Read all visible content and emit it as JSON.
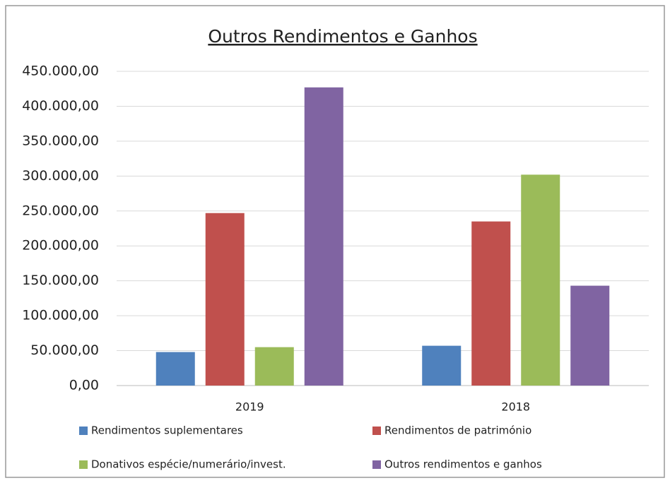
{
  "chart_data": {
    "type": "bar",
    "title": "Outros Rendimentos e Ganhos",
    "categories": [
      "2019",
      "2018"
    ],
    "series": [
      {
        "name": "Rendimentos suplementares",
        "color": "#4f81bd",
        "values": [
          48000,
          57000
        ]
      },
      {
        "name": "Rendimentos de património",
        "color": "#c0504d",
        "values": [
          247000,
          235000
        ]
      },
      {
        "name": "Donativos espécie/numerário/invest.",
        "color": "#9bbb59",
        "values": [
          55000,
          302000
        ]
      },
      {
        "name": "Outros rendimentos e ganhos",
        "color": "#8064a2",
        "values": [
          427000,
          143000
        ]
      }
    ],
    "ylim": [
      0,
      450000
    ],
    "yticks": [
      {
        "value": 0,
        "label": "0,00"
      },
      {
        "value": 50000,
        "label": "50.000,00"
      },
      {
        "value": 100000,
        "label": "100.000,00"
      },
      {
        "value": 150000,
        "label": "150.000,00"
      },
      {
        "value": 200000,
        "label": "200.000,00"
      },
      {
        "value": 250000,
        "label": "250.000,00"
      },
      {
        "value": 300000,
        "label": "300.000,00"
      },
      {
        "value": 350000,
        "label": "350.000,00"
      },
      {
        "value": 400000,
        "label": "400.000,00"
      },
      {
        "value": 450000,
        "label": "450.000,00"
      }
    ],
    "grid": true,
    "legend": "bottom"
  }
}
